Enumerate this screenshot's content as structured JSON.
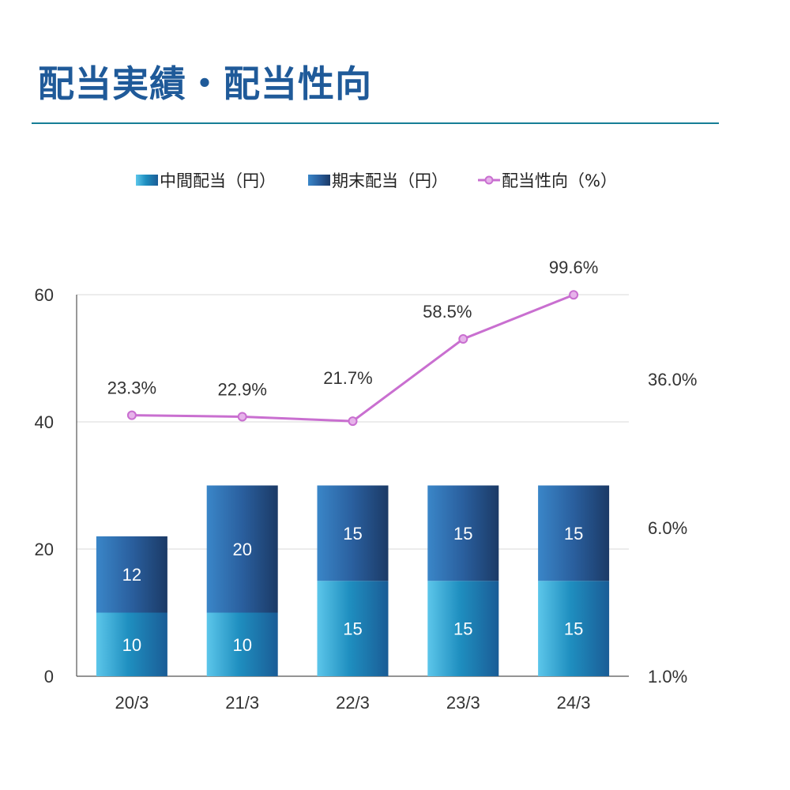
{
  "page": {
    "title": "配当実績・配当性向"
  },
  "chart_data": {
    "type": "bar",
    "stacked": true,
    "categories": [
      "20/3",
      "21/3",
      "22/3",
      "23/3",
      "24/3"
    ],
    "series": [
      {
        "name": "中間配当（円）",
        "type": "bar",
        "axis": "left",
        "values": [
          10,
          10,
          15,
          15,
          15
        ],
        "color": "#2a9cc6"
      },
      {
        "name": "期末配当（円）",
        "type": "bar",
        "axis": "left",
        "values": [
          12,
          20,
          15,
          15,
          15
        ],
        "color": "#2a5f9e"
      },
      {
        "name": "配当性向（%）",
        "type": "line",
        "axis": "right",
        "values": [
          23.3,
          22.9,
          21.7,
          58.5,
          99.6
        ],
        "labels": [
          "23.3%",
          "22.9%",
          "21.7%",
          "58.5%",
          "99.6%"
        ],
        "color": "#c96fd0"
      }
    ],
    "left_axis": {
      "ylim": [
        0,
        60
      ],
      "ticks": [
        "0",
        "20",
        "40",
        "60"
      ]
    },
    "right_axis": {
      "scale": "log",
      "ticks": [
        "1.0%",
        "6.0%",
        "36.0%"
      ]
    },
    "legend_position": "top",
    "grid": true
  }
}
